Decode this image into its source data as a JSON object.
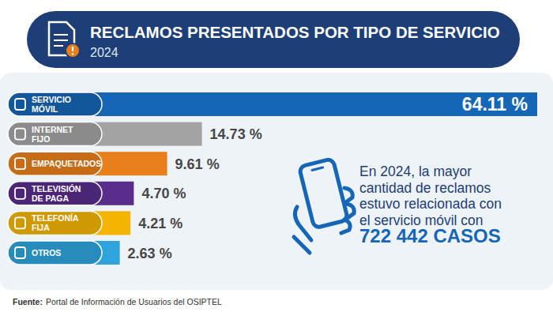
{
  "chart_data": {
    "type": "bar",
    "orientation": "horizontal",
    "title": "RECLAMOS PRESENTADOS POR TIPO DE SERVICIO",
    "subtitle": "2024",
    "categories": [
      "SERVICIO MÓVIL",
      "INTERNET FIJO",
      "EMPAQUETADOS",
      "TELEVISIÓN DE PAGA",
      "TELEFONÍA FIJA",
      "OTROS"
    ],
    "values": [
      64.11,
      14.73,
      9.61,
      4.7,
      4.21,
      2.63
    ],
    "value_labels": [
      "64.11 %",
      "14.73 %",
      "9.61 %",
      "4.70 %",
      "4.21 %",
      "2.63 %"
    ],
    "colors": [
      "#1566b7",
      "#a3a3a3",
      "#e97f1b",
      "#5a2c8c",
      "#f4b400",
      "#2ea3dc"
    ],
    "data_labels": true,
    "tick_labels": "y",
    "grid": false,
    "annotations": [
      "En 2024, la mayor",
      "cantidad de reclamos",
      "estuvo relacionada con",
      "el servicio móvil con",
      "722 442 CASOS"
    ],
    "source_label": "Fuente:",
    "source": "Portal de Información de Usuarios del OSIPTEL"
  }
}
